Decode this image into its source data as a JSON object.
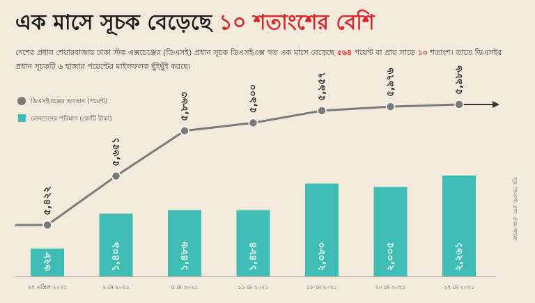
{
  "headline": {
    "prefix": "এক মাসে সূচক বেড়েছে ",
    "highlight": "১০ শতাংশের বেশি"
  },
  "lede": {
    "part1": "দেশের প্রধান শেয়ারবাজার ঢাকা স্টক এক্সচেঞ্জের (ডিএসই) প্রধান সূচক ডিএসইএক্স গত এক মাসে বেড়েছে ",
    "num1": "৫৬৪",
    "part2": "পয়েন্ট বা প্রায় সাড়ে ",
    "num2": "১০",
    "part3": " শতাংশ। তাতে ডিএসইর প্রধান সূচকটি ৬ হাজার পয়েন্টের মাইলফলক ছুঁইছুঁই করছে।"
  },
  "colors": {
    "bar": "#3dbdb3",
    "line": "#7a7a7a",
    "point": "#7a7a7a",
    "accent": "#d5282a",
    "background": "#f3eadc"
  },
  "chart_data": {
    "type": "bar",
    "categories": [
      "২৭ এপ্রিল ২০২১",
      "২ মে ২০২১",
      "৫ মে ২০২১",
      "১১ মে ২০২১",
      "১৮ মে ২০২১",
      "২০ মে ২০২১",
      "২৭ মে ২০২১"
    ],
    "series": [
      {
        "name": "ডিএসইএক্সের অবস্থান (পয়েন্ট)",
        "type": "line",
        "values": [
          5422,
          5651,
          5863,
          5900,
          5957,
          5976,
          5986
        ],
        "labels": [
          "৫,৪২২",
          "৫,৬৫১",
          "৫,৮৬৩",
          "৫,৯০০",
          "৫,৯৫৭",
          "৫,৯৭৬",
          "৫,৯৮৬"
        ]
      },
      {
        "name": "লেনদেনের পরিমাণ (কোটি টাকা)",
        "type": "bar",
        "values": [
          628,
          1409,
          1486,
          1484,
          2080,
          2005,
          2261
        ],
        "labels": [
          "৬২৮",
          "১,৪০৯",
          "১,৪৮৬",
          "১,৪৮৪",
          "২,০৮০",
          "২,০০৫",
          "২,২৬১"
        ]
      }
    ],
    "legend_position": "top-left",
    "source": "সূত্র: ডিএসই। গ্রাফ: প্রথম আলো"
  }
}
